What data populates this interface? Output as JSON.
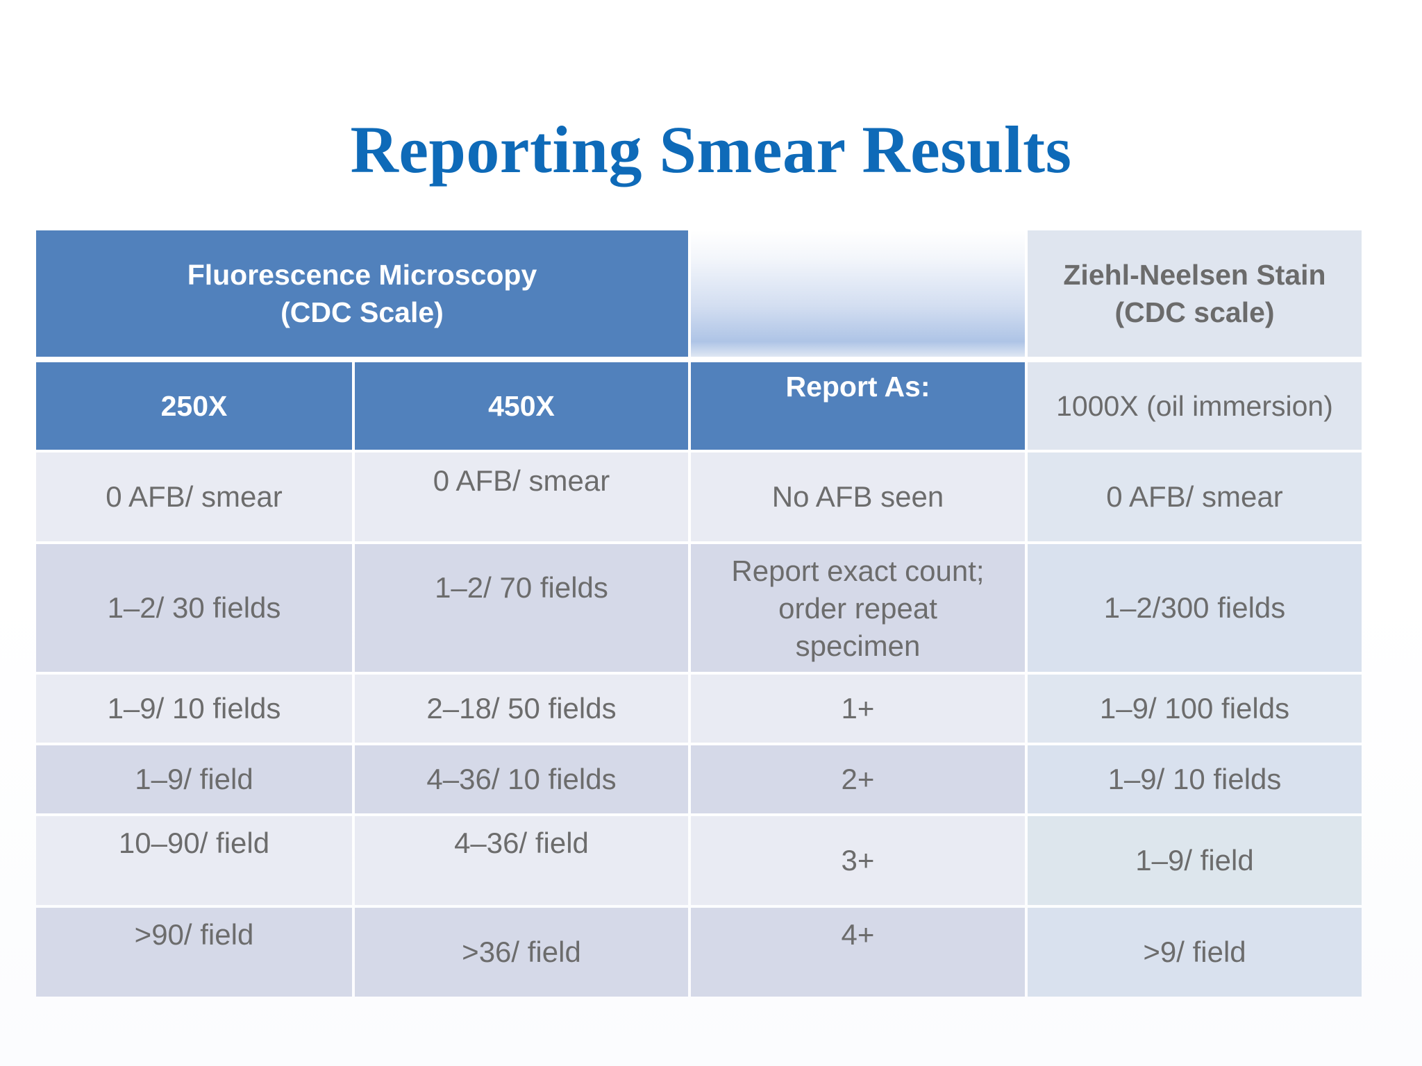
{
  "title": "Reporting Smear Results",
  "header": {
    "fluorescence": [
      "Fluorescence Microscopy",
      "(CDC Scale)"
    ],
    "ziehl": [
      "Ziehl-Neelsen Stain",
      "(CDC scale)"
    ]
  },
  "subheader": {
    "col1": "250X",
    "col2": "450X",
    "col3": "Report As:",
    "col4": "1000X (oil immersion)"
  },
  "rows": [
    [
      "0 AFB/ smear",
      "0 AFB/ smear",
      "No AFB seen",
      "0 AFB/ smear"
    ],
    [
      "1–2/ 30 fields",
      "1–2/ 70 fields",
      [
        "Report exact count;",
        "order repeat",
        "specimen"
      ],
      "1–2/300 fields"
    ],
    [
      "1–9/ 10 fields",
      "2–18/ 50 fields",
      "1+",
      "1–9/ 100 fields"
    ],
    [
      "1–9/ field",
      "4–36/ 10 fields",
      "2+",
      "1–9/ 10 fields"
    ],
    [
      "10–90/ field",
      "4–36/ field",
      "3+",
      "1–9/ field"
    ],
    [
      ">90/ field",
      ">36/ field",
      "4+",
      ">9/ field"
    ]
  ],
  "colors": {
    "title": "#0e6ab8",
    "header_blue": "#5181bc",
    "header_light": "#dfe5ef",
    "row_light": "#e9ebf3",
    "row_dark": "#d5d9e8",
    "text_gray": "#6c6c6c"
  }
}
